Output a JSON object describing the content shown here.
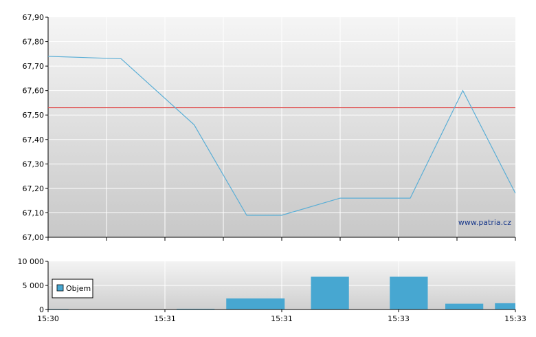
{
  "watermark": "www.patria.cz",
  "chart_data": [
    {
      "type": "line",
      "title": "",
      "ylim": [
        67.0,
        67.9
      ],
      "yticks": [
        "67,90",
        "67,80",
        "67,70",
        "67,60",
        "67,50",
        "67,40",
        "67,30",
        "67,20",
        "67,10",
        "67,00"
      ],
      "x_categories_count": 8,
      "grid": true,
      "series": [
        {
          "color": "#5aaed6",
          "x": [
            0,
            1.25,
            2.5,
            3.4,
            4.0,
            5.0,
            6.2,
            7.1,
            8.0
          ],
          "values": [
            67.74,
            67.73,
            67.46,
            67.09,
            67.09,
            67.16,
            67.16,
            67.6,
            67.18
          ]
        }
      ],
      "reference_line": {
        "value": 67.53,
        "color": "#e05050"
      }
    },
    {
      "type": "bar",
      "title": "",
      "ylim": [
        0,
        10000
      ],
      "yticks": [
        "10 000",
        "5 000",
        "0"
      ],
      "xticks": [
        "15:30",
        "15:31",
        "15:31",
        "15:33",
        "15:33"
      ],
      "legend": {
        "label": "Objem",
        "placement": "left"
      },
      "bar_color": "#47a7d1",
      "bars": [
        {
          "x0": 0.0,
          "x1": 0.35,
          "value": 120
        },
        {
          "x0": 2.2,
          "x1": 2.85,
          "value": 150
        },
        {
          "x0": 3.05,
          "x1": 4.05,
          "value": 2300
        },
        {
          "x0": 4.5,
          "x1": 5.15,
          "value": 6800
        },
        {
          "x0": 5.85,
          "x1": 6.5,
          "value": 6800
        },
        {
          "x0": 6.8,
          "x1": 7.45,
          "value": 1200
        },
        {
          "x0": 7.65,
          "x1": 8.0,
          "value": 1300
        }
      ]
    }
  ]
}
